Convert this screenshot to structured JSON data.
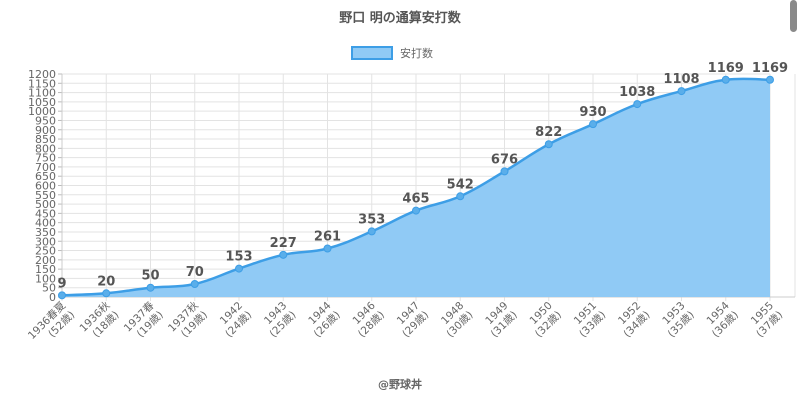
{
  "chart_data": {
    "type": "area",
    "title": "野口 明の通算安打数",
    "footer": "@野球丼",
    "legend": {
      "position": "top-center",
      "label": "安打数"
    },
    "xlabel": "",
    "ylabel": "",
    "ylim": [
      0,
      1200
    ],
    "yticks": [
      0,
      50,
      100,
      150,
      200,
      250,
      300,
      350,
      400,
      450,
      500,
      550,
      600,
      650,
      700,
      750,
      800,
      850,
      900,
      950,
      1000,
      1050,
      1100,
      1150,
      1200
    ],
    "grid": true,
    "categories": [
      [
        "1936春夏",
        "(52歳)"
      ],
      [
        "1936秋",
        "(18歳)"
      ],
      [
        "1937春",
        "(19歳)"
      ],
      [
        "1937秋",
        "(19歳)"
      ],
      [
        "1942",
        "(24歳)"
      ],
      [
        "1943",
        "(25歳)"
      ],
      [
        "1944",
        "(26歳)"
      ],
      [
        "1946",
        "(28歳)"
      ],
      [
        "1947",
        "(29歳)"
      ],
      [
        "1948",
        "(30歳)"
      ],
      [
        "1949",
        "(31歳)"
      ],
      [
        "1950",
        "(32歳)"
      ],
      [
        "1951",
        "(33歳)"
      ],
      [
        "1952",
        "(34歳)"
      ],
      [
        "1953",
        "(35歳)"
      ],
      [
        "1954",
        "(36歳)"
      ],
      [
        "1955",
        "(37歳)"
      ]
    ],
    "series": [
      {
        "name": "安打数",
        "values": [
          9,
          20,
          50,
          70,
          153,
          227,
          261,
          353,
          465,
          542,
          676,
          822,
          930,
          1038,
          1108,
          1169,
          1169
        ]
      }
    ],
    "colors": {
      "fill": "#90caf5",
      "line": "#3d9ee6",
      "point": "#5aaeea",
      "label": "#555555",
      "grid": "#e3e3e3",
      "tick": "#666666"
    }
  }
}
